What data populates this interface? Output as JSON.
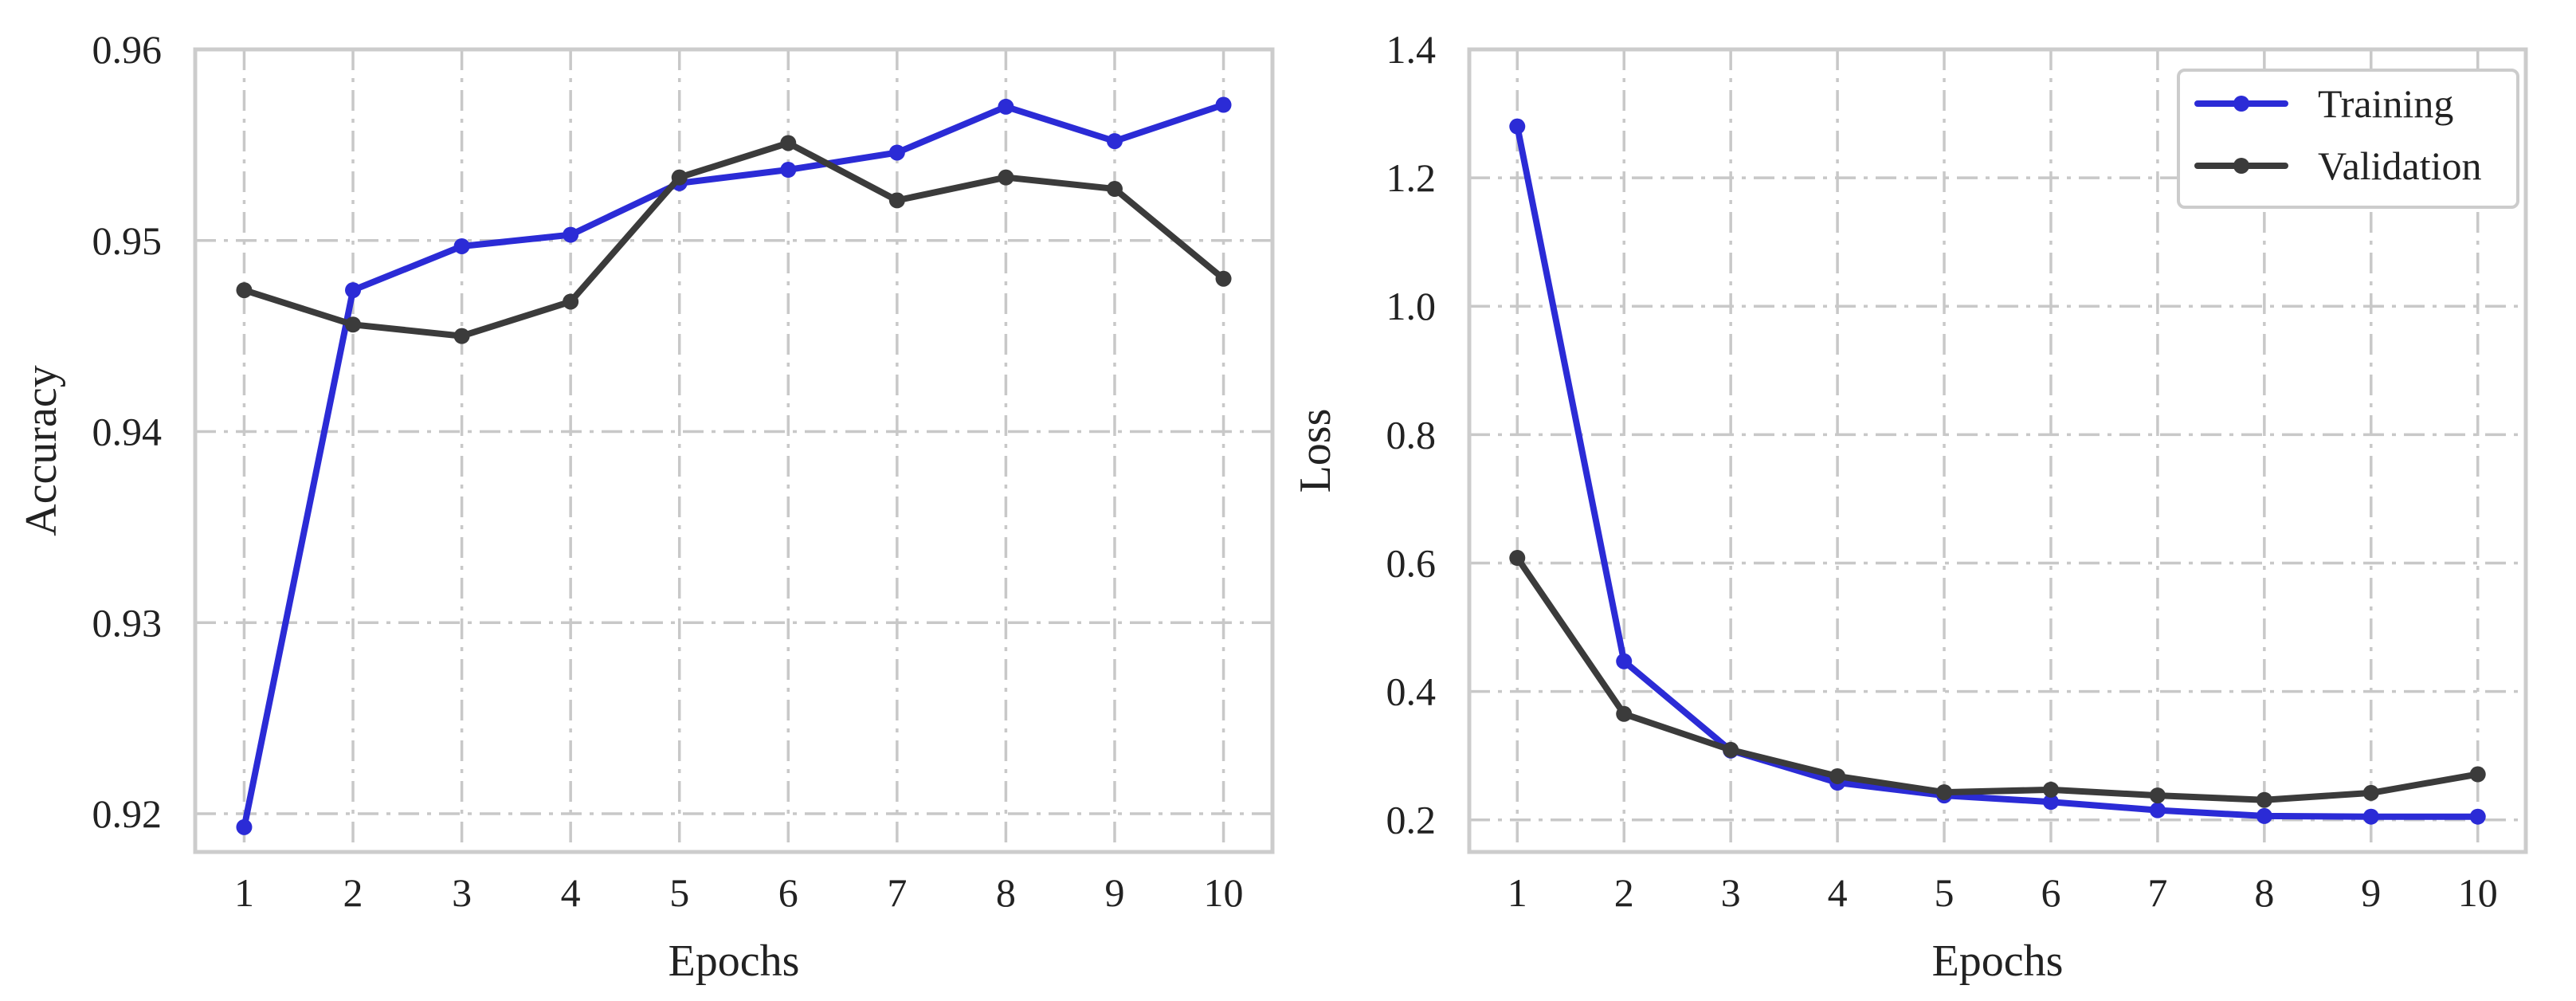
{
  "colors": {
    "training": "#2b2bd6",
    "validation": "#3b3b3b"
  },
  "chart_data": [
    {
      "type": "line",
      "title": "",
      "xlabel": "Epochs",
      "ylabel": "Accuracy",
      "x": [
        1,
        2,
        3,
        4,
        5,
        6,
        7,
        8,
        9,
        10
      ],
      "xtick_labels": [
        "1",
        "2",
        "3",
        "4",
        "5",
        "6",
        "7",
        "8",
        "9",
        "10"
      ],
      "xlim": [
        0.55,
        10.45
      ],
      "ylim": [
        0.918,
        0.96
      ],
      "yticks": [
        0.92,
        0.93,
        0.94,
        0.95,
        0.96
      ],
      "ytick_labels": [
        "0.92",
        "0.93",
        "0.94",
        "0.95",
        "0.96"
      ],
      "grid": true,
      "legend": null,
      "series": [
        {
          "name": "Training",
          "color_key": "training",
          "values": [
            0.9193,
            0.9474,
            0.9497,
            0.9503,
            0.953,
            0.9537,
            0.9546,
            0.957,
            0.9552,
            0.9571
          ]
        },
        {
          "name": "Validation",
          "color_key": "validation",
          "values": [
            0.9474,
            0.9456,
            0.945,
            0.9468,
            0.9533,
            0.9551,
            0.9521,
            0.9533,
            0.9527,
            0.948
          ]
        }
      ]
    },
    {
      "type": "line",
      "title": "",
      "xlabel": "Epochs",
      "ylabel": "Loss",
      "x": [
        1,
        2,
        3,
        4,
        5,
        6,
        7,
        8,
        9,
        10
      ],
      "xtick_labels": [
        "1",
        "2",
        "3",
        "4",
        "5",
        "6",
        "7",
        "8",
        "9",
        "10"
      ],
      "xlim": [
        0.55,
        10.45
      ],
      "ylim": [
        0.15,
        1.4
      ],
      "yticks": [
        0.2,
        0.4,
        0.6,
        0.8,
        1.0,
        1.2,
        1.4
      ],
      "ytick_labels": [
        "0.2",
        "0.4",
        "0.6",
        "0.8",
        "1.0",
        "1.2",
        "1.4"
      ],
      "grid": true,
      "legend": {
        "position": "upper right",
        "entries": [
          "Training",
          "Validation"
        ]
      },
      "series": [
        {
          "name": "Training",
          "color_key": "training",
          "values": [
            1.28,
            0.447,
            0.308,
            0.258,
            0.238,
            0.228,
            0.215,
            0.206,
            0.205,
            0.205
          ]
        },
        {
          "name": "Validation",
          "color_key": "validation",
          "values": [
            0.608,
            0.365,
            0.309,
            0.268,
            0.243,
            0.247,
            0.238,
            0.231,
            0.242,
            0.271
          ]
        }
      ]
    }
  ]
}
